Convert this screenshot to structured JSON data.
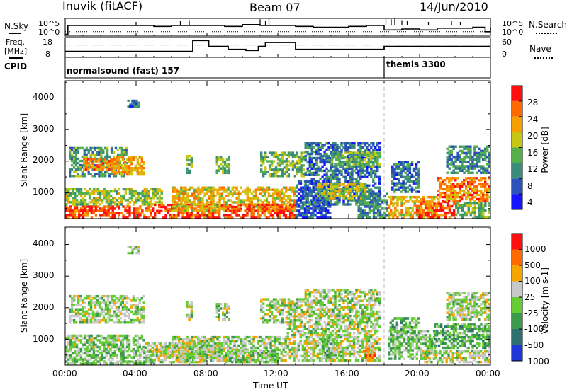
{
  "header": {
    "station": "Inuvik (fitACF)",
    "beam": "Beam 07",
    "date": "14/Jun/2010"
  },
  "noise_panel": {
    "left_label": "N.Sky",
    "right_label": "N.Search",
    "left_ticks": [
      "10^5",
      "10^0"
    ],
    "right_ticks": [
      "10^5",
      "10^0"
    ]
  },
  "freq_panel": {
    "left_label_1": "Freq.",
    "left_label_2": "[MHz]",
    "right_label": "Nave",
    "left_ticks": [
      "18",
      "8"
    ],
    "right_ticks": [
      "60",
      "0"
    ]
  },
  "cpid_panel": {
    "label": "CPID",
    "modes": [
      {
        "name": "normalsound (fast) 157",
        "start_hour": 0
      },
      {
        "name": "themis 3300",
        "start_hour": 18
      }
    ]
  },
  "chart_data": [
    {
      "type": "heatmap",
      "panel": "power",
      "ylabel": "Slant Range [km]",
      "y_ticks": [
        "1000",
        "2000",
        "3000",
        "4000"
      ],
      "ylim": [
        180,
        4550
      ],
      "xlim": [
        0,
        24
      ],
      "colorbar": {
        "label": "Power [dB]",
        "ticks": [
          "4",
          "8",
          "12",
          "16",
          "20",
          "24",
          "28"
        ],
        "range": [
          0,
          32
        ],
        "colors": [
          "#1414ff",
          "#2a52b8",
          "#3b8c7a",
          "#55b04c",
          "#c8c814",
          "#f5a000",
          "#ff6a00",
          "#ff1010"
        ]
      },
      "regions": [
        {
          "t0": 0.0,
          "t1": 5.0,
          "r0": 200,
          "r1": 600,
          "level": 28
        },
        {
          "t0": 0.0,
          "t1": 5.5,
          "r0": 600,
          "r1": 1150,
          "level": 16
        },
        {
          "t0": 0.2,
          "t1": 3.5,
          "r0": 1500,
          "r1": 2450,
          "level": 12
        },
        {
          "t0": 1.0,
          "t1": 3.0,
          "r0": 1700,
          "r1": 2100,
          "level": 24
        },
        {
          "t0": 2.6,
          "t1": 4.5,
          "r0": 1550,
          "r1": 2150,
          "level": 22
        },
        {
          "t0": 3.5,
          "t1": 4.2,
          "r0": 3700,
          "r1": 3950,
          "level": 8
        },
        {
          "t0": 5.0,
          "t1": 9.0,
          "r0": 200,
          "r1": 650,
          "level": 28
        },
        {
          "t0": 6.0,
          "t1": 13.0,
          "r0": 400,
          "r1": 1200,
          "level": 20
        },
        {
          "t0": 6.8,
          "t1": 7.2,
          "r0": 1600,
          "r1": 2200,
          "level": 14
        },
        {
          "t0": 8.5,
          "t1": 9.3,
          "r0": 1600,
          "r1": 2150,
          "level": 14
        },
        {
          "t0": 11.0,
          "t1": 13.5,
          "r0": 1500,
          "r1": 2300,
          "level": 14
        },
        {
          "t0": 9.0,
          "t1": 13.0,
          "r0": 200,
          "r1": 650,
          "level": 28
        },
        {
          "t0": 13.0,
          "t1": 15.0,
          "r0": 200,
          "r1": 1400,
          "level": 6
        },
        {
          "t0": 13.5,
          "t1": 17.8,
          "r0": 600,
          "r1": 2600,
          "level": 8
        },
        {
          "t0": 14.2,
          "t1": 17.0,
          "r0": 800,
          "r1": 1300,
          "level": 18
        },
        {
          "t0": 15.0,
          "t1": 17.8,
          "r0": 1800,
          "r1": 2300,
          "level": 14
        },
        {
          "t0": 16.5,
          "t1": 18.2,
          "r0": 200,
          "r1": 1000,
          "level": 10
        },
        {
          "t0": 18.2,
          "t1": 21.0,
          "r0": 200,
          "r1": 900,
          "level": 20
        },
        {
          "t0": 18.4,
          "t1": 20.0,
          "r0": 1000,
          "r1": 2000,
          "level": 8
        },
        {
          "t0": 19.8,
          "t1": 22.0,
          "r0": 200,
          "r1": 750,
          "level": 28
        },
        {
          "t0": 21.0,
          "t1": 24.0,
          "r0": 700,
          "r1": 1500,
          "level": 24
        },
        {
          "t0": 21.5,
          "t1": 24.0,
          "r0": 1600,
          "r1": 2500,
          "level": 10
        },
        {
          "t0": 22.0,
          "t1": 24.0,
          "r0": 200,
          "r1": 700,
          "level": 14
        }
      ]
    },
    {
      "type": "heatmap",
      "panel": "velocity",
      "ylabel": "Slant Range [km]",
      "y_ticks": [
        "1000",
        "2000",
        "3000",
        "4000"
      ],
      "ylim": [
        180,
        4550
      ],
      "xlim": [
        0,
        24
      ],
      "xlabel": "Time UT",
      "x_ticks": [
        "00:00",
        "04:00",
        "08:00",
        "12:00",
        "16:00",
        "20:00",
        "00:00"
      ],
      "colorbar": {
        "label": "Velocity [m s-1]",
        "ticks": [
          "1000",
          "500",
          "100",
          "25",
          "-25",
          "-100",
          "-500",
          "-1000"
        ],
        "range": [
          -1200,
          1200
        ],
        "colors": [
          "#1f36d8",
          "#2d7070",
          "#3d9a4d",
          "#66cc33",
          "#c8c8c8",
          "#f6a400",
          "#ff6a00",
          "#ff1010"
        ]
      },
      "regions": [
        {
          "t0": 0.0,
          "t1": 5.0,
          "r0": 200,
          "r1": 650,
          "level": -120
        },
        {
          "t0": 0.0,
          "t1": 4.5,
          "r0": 650,
          "r1": 1150,
          "level": -80
        },
        {
          "t0": 0.2,
          "t1": 4.5,
          "r0": 1500,
          "r1": 2400,
          "level": 0
        },
        {
          "t0": 3.5,
          "t1": 4.2,
          "r0": 3700,
          "r1": 3950,
          "level": 0
        },
        {
          "t0": 4.5,
          "t1": 8.0,
          "r0": 250,
          "r1": 900,
          "level": 60
        },
        {
          "t0": 5.5,
          "t1": 9.0,
          "r0": 400,
          "r1": 800,
          "level": 0
        },
        {
          "t0": 6.0,
          "t1": 12.5,
          "r0": 300,
          "r1": 1100,
          "level": 0
        },
        {
          "t0": 6.8,
          "t1": 7.2,
          "r0": 1600,
          "r1": 2200,
          "level": 0
        },
        {
          "t0": 8.5,
          "t1": 9.3,
          "r0": 1600,
          "r1": 2150,
          "level": 0
        },
        {
          "t0": 9.0,
          "t1": 12.0,
          "r0": 250,
          "r1": 650,
          "level": -80
        },
        {
          "t0": 11.0,
          "t1": 13.5,
          "r0": 1500,
          "r1": 2300,
          "level": 0
        },
        {
          "t0": 12.5,
          "t1": 17.8,
          "r0": 300,
          "r1": 1500,
          "level": 50
        },
        {
          "t0": 13.5,
          "t1": 17.8,
          "r0": 1500,
          "r1": 2600,
          "level": 0
        },
        {
          "t0": 14.5,
          "t1": 15.3,
          "r0": 400,
          "r1": 1300,
          "level": -300
        },
        {
          "t0": 16.8,
          "t1": 17.5,
          "r0": 300,
          "r1": 800,
          "level": 600
        },
        {
          "t0": 18.2,
          "t1": 21.0,
          "r0": 350,
          "r1": 1300,
          "level": -150
        },
        {
          "t0": 18.3,
          "t1": 20.0,
          "r0": 1200,
          "r1": 1700,
          "level": -300
        },
        {
          "t0": 20.8,
          "t1": 24.0,
          "r0": 700,
          "r1": 1500,
          "level": -300
        },
        {
          "t0": 21.5,
          "t1": 24.0,
          "r0": 1600,
          "r1": 2500,
          "level": 0
        },
        {
          "t0": 20.0,
          "t1": 24.0,
          "r0": 250,
          "r1": 650,
          "level": 40
        }
      ]
    },
    {
      "type": "line",
      "panel": "noise",
      "series": [
        {
          "name": "N.Sky",
          "x": [
            0,
            0.1,
            0.15,
            2,
            3,
            4,
            5,
            6,
            7,
            8,
            9,
            10,
            11,
            12,
            13,
            14,
            15,
            16,
            17,
            17.95,
            18.0,
            19,
            20,
            21,
            22,
            23,
            23.6,
            23.7,
            24
          ],
          "y": [
            0.1,
            0.1,
            0.6,
            0.6,
            0.6,
            0.6,
            0.55,
            0.6,
            0.6,
            0.6,
            0.55,
            0.65,
            0.6,
            0.6,
            0.55,
            0.5,
            0.5,
            0.55,
            0.6,
            0.6,
            0.35,
            0.4,
            0.35,
            0.45,
            0.45,
            0.5,
            0.5,
            0.25,
            0.5
          ]
        },
        {
          "name": "N.Search",
          "x": [
            0,
            24
          ],
          "y": [
            0.25,
            0.25
          ]
        }
      ]
    },
    {
      "type": "line",
      "panel": "frequency",
      "series": [
        {
          "name": "Freq.",
          "x": [
            0,
            7.0,
            7.2,
            8.0,
            8.1,
            9.1,
            9.2,
            10.1,
            10.2,
            10.8,
            10.9,
            11.2,
            11.3,
            12.9,
            13.0,
            17.9,
            18.0,
            24
          ],
          "y": [
            0.3,
            0.3,
            0.85,
            0.85,
            0.55,
            0.55,
            0.4,
            0.4,
            0.35,
            0.35,
            0.55,
            0.55,
            0.75,
            0.75,
            0.4,
            0.4,
            0.55,
            0.55
          ]
        },
        {
          "name": "Nave",
          "x": [
            0,
            24
          ],
          "y": [
            0.62,
            0.62
          ]
        }
      ]
    }
  ]
}
